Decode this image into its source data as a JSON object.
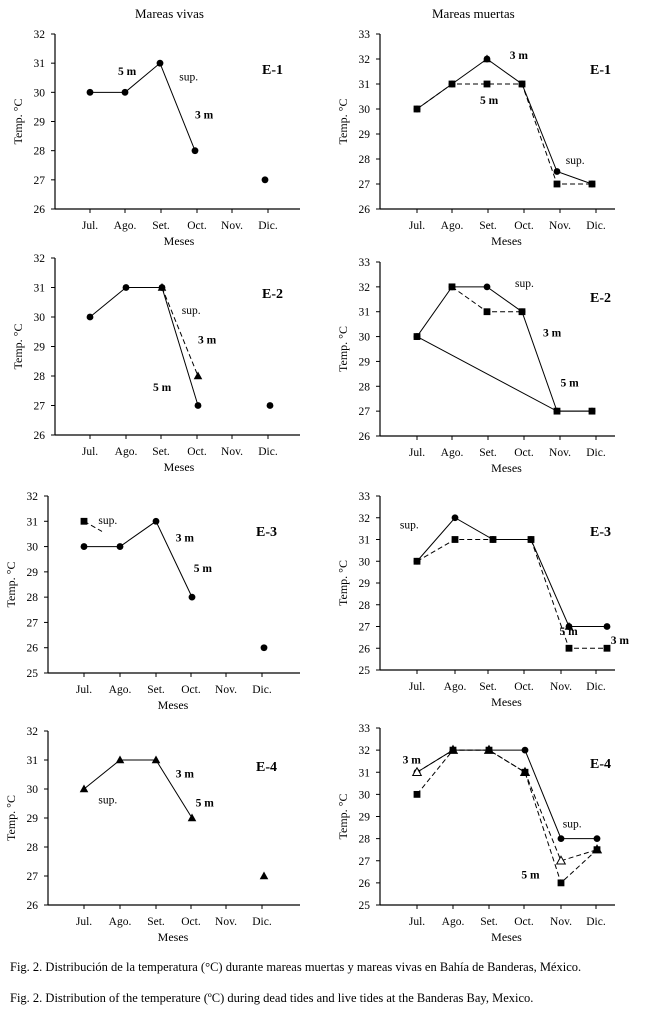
{
  "column_titles": {
    "left": "Mareas vivas",
    "right": "Mareas muertas"
  },
  "captions": {
    "es": "Fig. 2. Distribución de la temperatura (°C) durante mareas muertas y mareas vivas en Bahía de Banderas, México.",
    "en": "Fig. 2. Distribution of the temperature (ºC) during dead tides and live tides at the Banderas Bay, Mexico."
  },
  "chart_data": [
    {
      "type": "line",
      "panel": "E-1",
      "column": "Mareas vivas",
      "xlabel": "Meses",
      "ylabel": "Temp. °C",
      "categories": [
        "Jul.",
        "Ago.",
        "Set.",
        "Oct.",
        "Nov.",
        "Dic."
      ],
      "ylim": [
        26,
        32
      ],
      "yticks": [
        26,
        27,
        28,
        29,
        30,
        31,
        32
      ],
      "series": [
        {
          "marker": "circle",
          "dash": false,
          "points": [
            [
              0,
              30
            ],
            [
              1,
              30
            ],
            [
              2,
              31
            ],
            [
              3,
              28
            ]
          ]
        },
        {
          "marker": "circle",
          "dash": false,
          "points": [
            [
              5,
              27
            ]
          ]
        }
      ],
      "annotations": [
        {
          "text": "5 m",
          "x": 0.8,
          "y": 30.6,
          "bold": true
        },
        {
          "text": "sup.",
          "x": 2.55,
          "y": 30.4,
          "bold": false
        },
        {
          "text": "3 m",
          "x": 3.0,
          "y": 29.1,
          "bold": true
        }
      ]
    },
    {
      "type": "line",
      "panel": "E-1",
      "column": "Mareas muertas",
      "xlabel": "Meses",
      "ylabel": "Temp. °C",
      "categories": [
        "Jul.",
        "Ago.",
        "Set.",
        "Oct.",
        "Nov.",
        "Dic."
      ],
      "ylim": [
        26,
        33
      ],
      "yticks": [
        26,
        27,
        28,
        29,
        30,
        31,
        32,
        33
      ],
      "series": [
        {
          "marker": "circle",
          "dash": false,
          "points": [
            [
              0,
              30
            ],
            [
              1,
              31
            ],
            [
              2,
              32
            ],
            [
              3,
              31
            ],
            [
              4,
              27.5
            ],
            [
              5,
              27
            ]
          ]
        },
        {
          "marker": "square",
          "dash": true,
          "points": [
            [
              0,
              30
            ],
            [
              1,
              31
            ],
            [
              2,
              31
            ],
            [
              3,
              31
            ],
            [
              4,
              27
            ],
            [
              5,
              27
            ]
          ]
        },
        {
          "marker": "triangle",
          "dash": false,
          "points": [
            [
              2,
              32
            ]
          ]
        }
      ],
      "annotations": [
        {
          "text": "3 m",
          "x": 2.65,
          "y": 32.0,
          "bold": true
        },
        {
          "text": "5 m",
          "x": 1.8,
          "y": 30.2,
          "bold": true
        },
        {
          "text": "sup.",
          "x": 4.25,
          "y": 27.8,
          "bold": false
        }
      ]
    },
    {
      "type": "line",
      "panel": "E-2",
      "column": "Mareas vivas",
      "xlabel": "Meses",
      "ylabel": "Temp. °C",
      "categories": [
        "Jul.",
        "Ago.",
        "Set.",
        "Oct.",
        "Nov.",
        "Dic."
      ],
      "ylim": [
        26,
        32
      ],
      "yticks": [
        26,
        27,
        28,
        29,
        30,
        31,
        32
      ],
      "series": [
        {
          "marker": "circle",
          "dash": false,
          "points": [
            [
              0,
              30
            ],
            [
              1,
              31
            ],
            [
              2,
              31
            ],
            [
              3,
              27
            ]
          ]
        },
        {
          "marker": "triangle",
          "dash": true,
          "points": [
            [
              2,
              31
            ],
            [
              3,
              28
            ]
          ]
        },
        {
          "marker": "circle",
          "dash": false,
          "points": [
            [
              5,
              27
            ]
          ]
        }
      ],
      "annotations": [
        {
          "text": "sup.",
          "x": 2.55,
          "y": 30.1,
          "bold": false
        },
        {
          "text": "3 m",
          "x": 3.0,
          "y": 29.1,
          "bold": true
        },
        {
          "text": "5 m",
          "x": 1.75,
          "y": 27.5,
          "bold": true
        }
      ]
    },
    {
      "type": "line",
      "panel": "E-2",
      "column": "Mareas muertas",
      "xlabel": "Meses",
      "ylabel": "Temp. °C",
      "categories": [
        "Jul.",
        "Ago.",
        "Set.",
        "Oct.",
        "Nov.",
        "Dic."
      ],
      "ylim": [
        26,
        33
      ],
      "yticks": [
        26,
        27,
        28,
        29,
        30,
        31,
        32,
        33
      ],
      "series": [
        {
          "marker": "circle",
          "dash": false,
          "points": [
            [
              0,
              30
            ],
            [
              1,
              32
            ],
            [
              2,
              32
            ],
            [
              3,
              31
            ],
            [
              4,
              27
            ],
            [
              5,
              27
            ]
          ]
        },
        {
          "marker": "square",
          "dash": true,
          "points": [
            [
              1,
              32
            ],
            [
              2,
              31
            ],
            [
              3,
              31
            ]
          ]
        },
        {
          "marker": "square",
          "dash": false,
          "points": [
            [
              0,
              30
            ],
            [
              4,
              27
            ],
            [
              5,
              27
            ]
          ]
        }
      ],
      "annotations": [
        {
          "text": "sup.",
          "x": 2.8,
          "y": 32.0,
          "bold": false
        },
        {
          "text": "3 m",
          "x": 3.6,
          "y": 30.0,
          "bold": true
        },
        {
          "text": "5 m",
          "x": 4.1,
          "y": 28.0,
          "bold": true
        }
      ]
    },
    {
      "type": "line",
      "panel": "E-3",
      "column": "Mareas vivas",
      "xlabel": "Meses",
      "ylabel": "Temp. °C",
      "categories": [
        "Jul.",
        "Ago.",
        "Set.",
        "Oct.",
        "Nov.",
        "Dic."
      ],
      "ylim": [
        25,
        32
      ],
      "yticks": [
        25,
        26,
        27,
        28,
        29,
        30,
        31,
        32
      ],
      "series": [
        {
          "marker": "circle",
          "dash": false,
          "points": [
            [
              0,
              30
            ],
            [
              1,
              30
            ],
            [
              2,
              31
            ],
            [
              3,
              28
            ]
          ]
        },
        {
          "marker": "square",
          "dash": true,
          "points": [
            [
              0,
              31
            ],
            [
              0.5,
              30.6
            ]
          ]
        },
        {
          "marker": "circle",
          "dash": false,
          "points": [
            [
              5,
              26
            ]
          ]
        }
      ],
      "annotations": [
        {
          "text": "sup.",
          "x": 0.4,
          "y": 30.9,
          "bold": false
        },
        {
          "text": "3 m",
          "x": 2.55,
          "y": 30.2,
          "bold": true
        },
        {
          "text": "5 m",
          "x": 3.05,
          "y": 29.0,
          "bold": true
        }
      ]
    },
    {
      "type": "line",
      "panel": "E-3",
      "column": "Mareas muertas",
      "xlabel": "Meses",
      "ylabel": "Temp. °C",
      "categories": [
        "Jul.",
        "Ago.",
        "Set.",
        "Oct.",
        "Nov.",
        "Dic."
      ],
      "ylim": [
        25,
        33
      ],
      "yticks": [
        25,
        26,
        27,
        28,
        29,
        30,
        31,
        32,
        33
      ],
      "series": [
        {
          "marker": "circle",
          "dash": false,
          "points": [
            [
              0,
              30
            ],
            [
              1,
              32
            ],
            [
              2,
              31
            ],
            [
              3,
              31
            ],
            [
              4,
              27
            ],
            [
              5,
              27
            ]
          ]
        },
        {
          "marker": "square",
          "dash": true,
          "points": [
            [
              0,
              30
            ],
            [
              1,
              31
            ],
            [
              2,
              31
            ],
            [
              3,
              31
            ],
            [
              4,
              26
            ],
            [
              5,
              26
            ]
          ]
        },
        {
          "marker": "triangle",
          "dash": false,
          "points": [
            [
              4,
              27
            ]
          ]
        }
      ],
      "annotations": [
        {
          "text": "sup.",
          "x": -0.45,
          "y": 31.5,
          "bold": false
        },
        {
          "text": "5 m",
          "x": 3.75,
          "y": 26.6,
          "bold": true
        },
        {
          "text": "3 m",
          "x": 5.1,
          "y": 26.2,
          "bold": true
        }
      ]
    },
    {
      "type": "line",
      "panel": "E-4",
      "column": "Mareas vivas",
      "xlabel": "Meses",
      "ylabel": "Temp. °C",
      "categories": [
        "Jul.",
        "Ago.",
        "Set.",
        "Oct.",
        "Nov.",
        "Dic."
      ],
      "ylim": [
        26,
        32
      ],
      "yticks": [
        26,
        27,
        28,
        29,
        30,
        31,
        32
      ],
      "series": [
        {
          "marker": "triangle",
          "dash": false,
          "points": [
            [
              0,
              30
            ],
            [
              1,
              31
            ],
            [
              2,
              31
            ],
            [
              3,
              29
            ]
          ]
        },
        {
          "marker": "triangle",
          "dash": false,
          "points": [
            [
              5,
              27
            ]
          ]
        }
      ],
      "annotations": [
        {
          "text": "sup.",
          "x": 0.4,
          "y": 29.5,
          "bold": false
        },
        {
          "text": "3 m",
          "x": 2.55,
          "y": 30.4,
          "bold": true
        },
        {
          "text": "5 m",
          "x": 3.1,
          "y": 29.4,
          "bold": true
        }
      ]
    },
    {
      "type": "line",
      "panel": "E-4",
      "column": "Mareas muertas",
      "xlabel": "Meses",
      "ylabel": "Temp. °C",
      "categories": [
        "Jul.",
        "Ago.",
        "Set.",
        "Oct.",
        "Nov.",
        "Dic."
      ],
      "ylim": [
        25,
        33
      ],
      "yticks": [
        25,
        26,
        27,
        28,
        29,
        30,
        31,
        32,
        33
      ],
      "series": [
        {
          "marker": "circle",
          "dash": false,
          "points": [
            [
              0,
              31
            ],
            [
              1,
              32
            ],
            [
              2,
              32
            ],
            [
              3,
              32
            ],
            [
              4,
              28
            ],
            [
              5,
              28
            ]
          ]
        },
        {
          "marker": "triangle-open",
          "dash": true,
          "points": [
            [
              0,
              31
            ],
            [
              1,
              32
            ],
            [
              2,
              32
            ],
            [
              3,
              31
            ],
            [
              4,
              27
            ],
            [
              5,
              27.5
            ]
          ]
        },
        {
          "marker": "square",
          "dash": true,
          "points": [
            [
              0,
              30
            ],
            [
              1,
              32
            ],
            [
              2,
              32
            ],
            [
              3,
              31
            ],
            [
              4,
              26
            ],
            [
              5,
              27.5
            ]
          ]
        }
      ],
      "annotations": [
        {
          "text": "3 m",
          "x": -0.4,
          "y": 31.4,
          "bold": true
        },
        {
          "text": "sup.",
          "x": 4.05,
          "y": 28.5,
          "bold": false
        },
        {
          "text": "5 m",
          "x": 2.9,
          "y": 26.2,
          "bold": true
        }
      ]
    }
  ]
}
